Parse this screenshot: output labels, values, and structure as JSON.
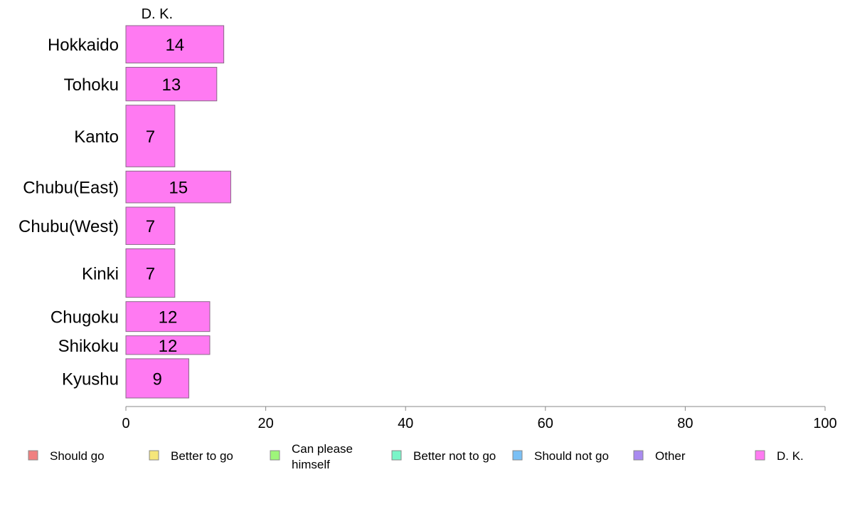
{
  "chart_data": {
    "type": "bar",
    "orientation": "horizontal",
    "stacked": true,
    "title": "",
    "xlabel": "",
    "ylabel": "",
    "series_title": "D. K.",
    "categories": [
      "Hokkaido",
      "Tohoku",
      "Kanto",
      "Chubu(East)",
      "Chubu(West)",
      "Kinki",
      "Chugoku",
      "Shikoku",
      "Kyushu"
    ],
    "series": [
      {
        "name": "Should go",
        "color": "#f08080",
        "values": [
          0,
          0,
          0,
          0,
          0,
          0,
          0,
          0,
          0
        ]
      },
      {
        "name": "Better to go",
        "color": "#f5e67a",
        "values": [
          0,
          0,
          0,
          0,
          0,
          0,
          0,
          0,
          0
        ]
      },
      {
        "name": "Can please himself",
        "color": "#9ef57a",
        "values": [
          0,
          0,
          0,
          0,
          0,
          0,
          0,
          0,
          0
        ]
      },
      {
        "name": "Better not to go",
        "color": "#7af5c8",
        "values": [
          0,
          0,
          0,
          0,
          0,
          0,
          0,
          0,
          0
        ]
      },
      {
        "name": "Should not go",
        "color": "#7ac0f5",
        "values": [
          0,
          0,
          0,
          0,
          0,
          0,
          0,
          0,
          0
        ]
      },
      {
        "name": "Other",
        "color": "#a98af0",
        "values": [
          0,
          0,
          0,
          0,
          0,
          0,
          0,
          0,
          0
        ]
      },
      {
        "name": "D. K.",
        "color": "#ff7af2",
        "values": [
          14,
          13,
          7,
          15,
          7,
          7,
          12,
          12,
          9
        ]
      }
    ],
    "bar_labels": [
      "14",
      "13",
      "7",
      "15",
      "7",
      "7",
      "12",
      "12",
      "9"
    ],
    "relative_widths": [
      1.0,
      0.9,
      1.65,
      0.85,
      1.0,
      1.3,
      0.8,
      0.5,
      1.05
    ],
    "xlim": [
      0,
      100
    ],
    "xticks": [
      0,
      20,
      40,
      60,
      80,
      100
    ],
    "grid": false,
    "legend_position": "bottom"
  }
}
